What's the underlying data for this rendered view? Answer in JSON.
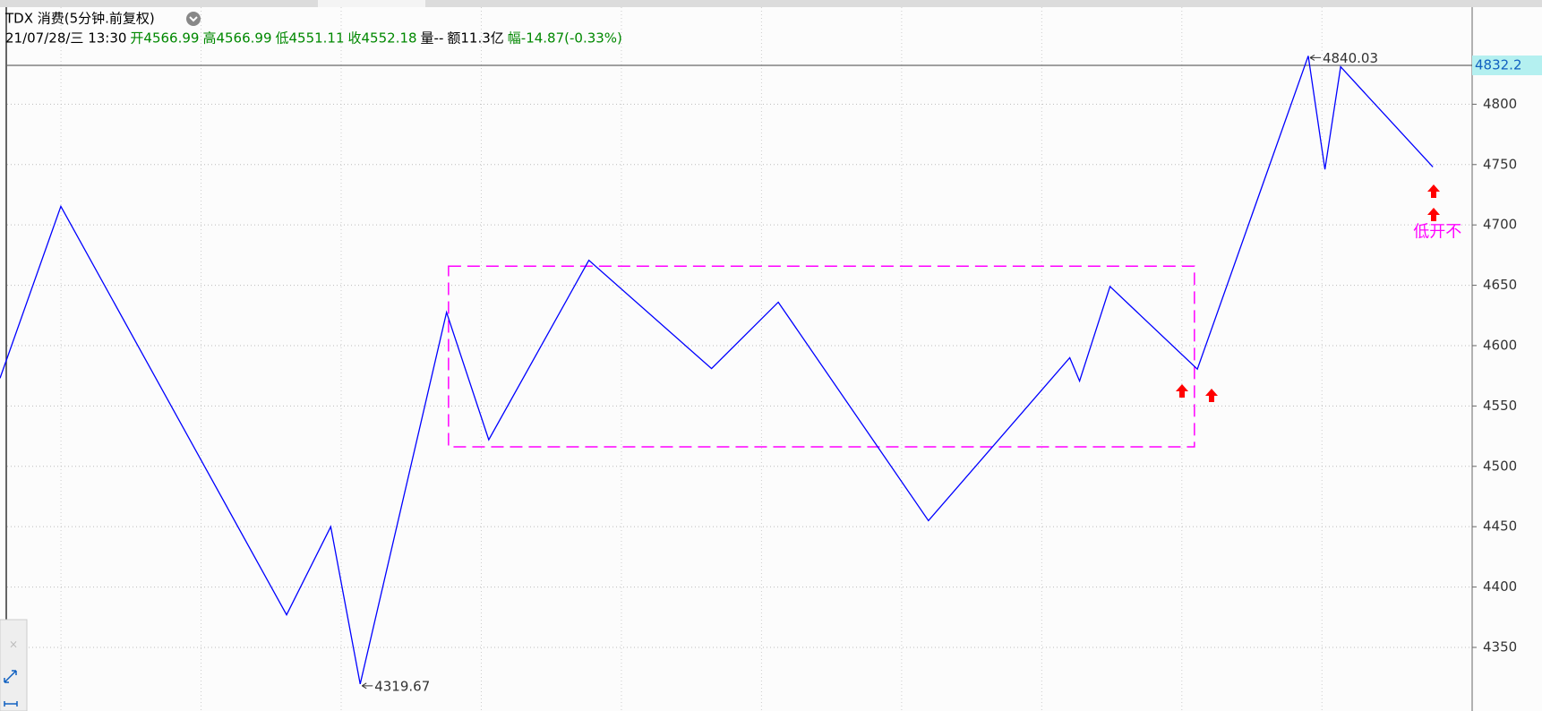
{
  "header": {
    "title": "TDX 消费(5分钟.前复权)",
    "info": [
      {
        "text": "21/07/28/三 13:30",
        "color": "#000000"
      },
      {
        "text": "开4566.99",
        "color": "#008800"
      },
      {
        "text": "高4566.99",
        "color": "#008800"
      },
      {
        "text": "低4551.11",
        "color": "#008800"
      },
      {
        "text": "收4552.18",
        "color": "#008800"
      },
      {
        "text": "量--",
        "color": "#000000"
      },
      {
        "text": "额11.3亿",
        "color": "#000000"
      },
      {
        "text": "幅-14.87(-0.33%)",
        "color": "#008800"
      }
    ]
  },
  "chart_data": {
    "type": "line",
    "x": [
      0,
      12.4,
      58.4,
      67.4,
      73.4,
      91,
      99.6,
      120,
      145,
      158.6,
      189.2,
      218,
      220,
      226.2,
      244,
      266.6,
      270,
      273.2,
      292
    ],
    "series": [
      {
        "color": "#0000ff",
        "values": [
          4573,
          4715.4,
          4377,
          4450,
          4319.67,
          4627.6,
          4522,
          4670.7,
          4581,
          4636,
          4455,
          4590,
          4570.7,
          4649,
          4580.5,
          4840.03,
          4746,
          4831,
          4748
        ]
      }
    ],
    "xlim": [
      0,
      300
    ],
    "ylim": [
      4307.7,
      4853.7
    ],
    "yticks": [
      4350,
      4400,
      4450,
      4500,
      4550,
      4600,
      4650,
      4700,
      4750,
      4800
    ],
    "grid": true,
    "cursor_price": 4832.2,
    "range_box": {
      "x0": 91.4,
      "x1": 243.4,
      "y0": 4516.2,
      "y1": 4665.8,
      "color": "#ff00ff"
    },
    "annotations": [
      {
        "text": "4319.67",
        "point": 4
      },
      {
        "text": "4840.03",
        "point": 15
      },
      {
        "text": "低开不",
        "x": 288,
        "y": 4694,
        "color": "#ff00ff"
      }
    ]
  }
}
